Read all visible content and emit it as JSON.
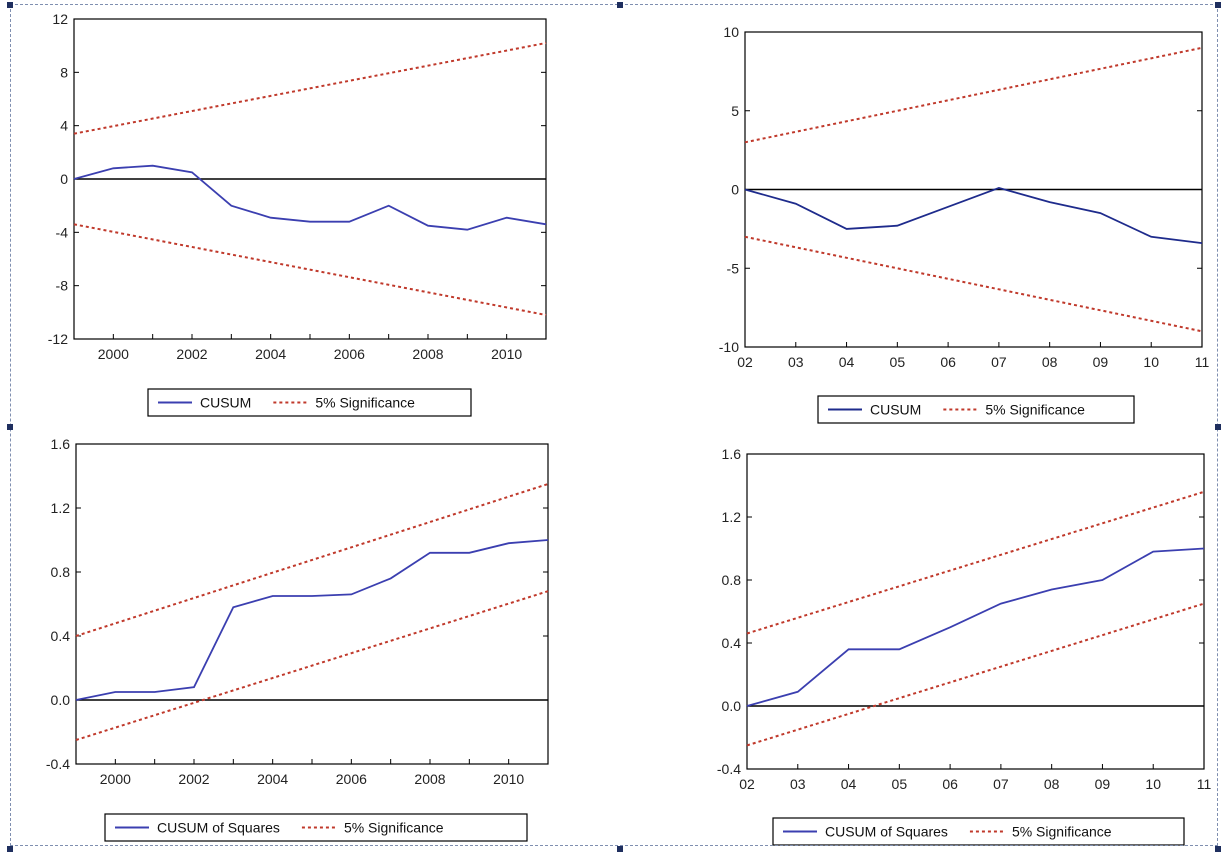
{
  "colors": {
    "cusum": "#3b3fb0",
    "cusum_dark": "#1e2b8c",
    "significance": "#c0392b",
    "axis": "#000000"
  },
  "chart_data": [
    {
      "type": "line",
      "xlim": [
        1999,
        2011
      ],
      "ylim": [
        -12,
        12
      ],
      "yticks": [
        12,
        8,
        4,
        0,
        -4,
        -8,
        -12
      ],
      "ytick_labels": [
        "12",
        "8",
        "4",
        "0",
        "-4",
        "-8",
        "-12"
      ],
      "xticks": [
        2000,
        2002,
        2004,
        2006,
        2008,
        2010
      ],
      "xtick_labels": [
        "2000",
        "2002",
        "2004",
        "2006",
        "2008",
        "2010"
      ],
      "series": [
        {
          "name": "CUSUM",
          "style": "solid",
          "x": [
            1999,
            2000,
            2001,
            2002,
            2003,
            2004,
            2005,
            2006,
            2007,
            2008,
            2009,
            2010,
            2011
          ],
          "y": [
            0,
            0.8,
            1.0,
            0.5,
            -2.0,
            -2.9,
            -3.2,
            -3.2,
            -2.0,
            -3.5,
            -3.8,
            -2.9,
            -3.4
          ]
        },
        {
          "name": "5% Significance",
          "style": "dotted",
          "x": [
            1999,
            2011
          ],
          "y": [
            3.4,
            10.2
          ]
        },
        {
          "name": "5% Significance",
          "style": "dotted",
          "x": [
            1999,
            2011
          ],
          "y": [
            -3.4,
            -10.2
          ]
        }
      ],
      "legend": [
        {
          "label": "CUSUM",
          "style": "solid"
        },
        {
          "label": "5% Significance",
          "style": "dotted"
        }
      ],
      "legend_position": "bottom"
    },
    {
      "type": "line",
      "xlim": [
        2,
        11
      ],
      "ylim": [
        -10,
        10
      ],
      "yticks": [
        10,
        5,
        0,
        -5,
        -10
      ],
      "ytick_labels": [
        "10",
        "5",
        "0",
        "-5",
        "-10"
      ],
      "xticks": [
        2,
        3,
        4,
        5,
        6,
        7,
        8,
        9,
        10,
        11
      ],
      "xtick_labels": [
        "02",
        "03",
        "04",
        "05",
        "06",
        "07",
        "08",
        "09",
        "10",
        "11"
      ],
      "series": [
        {
          "name": "CUSUM",
          "style": "solid",
          "x": [
            2,
            3,
            4,
            5,
            6,
            7,
            8,
            9,
            10,
            11
          ],
          "y": [
            0,
            -0.9,
            -2.5,
            -2.3,
            -1.1,
            0.1,
            -0.8,
            -1.5,
            -3.0,
            -3.4
          ]
        },
        {
          "name": "5% Significance",
          "style": "dotted",
          "x": [
            2,
            11
          ],
          "y": [
            3.0,
            9.0
          ]
        },
        {
          "name": "5% Significance",
          "style": "dotted",
          "x": [
            2,
            11
          ],
          "y": [
            -3.0,
            -9.0
          ]
        }
      ],
      "legend": [
        {
          "label": "CUSUM",
          "style": "solid"
        },
        {
          "label": "5% Significance",
          "style": "dotted"
        }
      ],
      "legend_position": "bottom"
    },
    {
      "type": "line",
      "xlim": [
        1999,
        2011
      ],
      "ylim": [
        -0.4,
        1.6
      ],
      "yticks": [
        1.6,
        1.2,
        0.8,
        0.4,
        0.0,
        -0.4
      ],
      "ytick_labels": [
        "1.6",
        "1.2",
        "0.8",
        "0.4",
        "0.0",
        "-0.4"
      ],
      "xticks": [
        2000,
        2002,
        2004,
        2006,
        2008,
        2010
      ],
      "xtick_labels": [
        "2000",
        "2002",
        "2004",
        "2006",
        "2008",
        "2010"
      ],
      "series": [
        {
          "name": "CUSUM of Squares",
          "style": "solid",
          "x": [
            1999,
            2000,
            2001,
            2002,
            2003,
            2004,
            2005,
            2006,
            2007,
            2008,
            2009,
            2010,
            2011
          ],
          "y": [
            0,
            0.05,
            0.05,
            0.08,
            0.58,
            0.65,
            0.65,
            0.66,
            0.76,
            0.92,
            0.92,
            0.98,
            1.0
          ]
        },
        {
          "name": "5% Significance",
          "style": "dotted",
          "x": [
            1999,
            2011
          ],
          "y": [
            0.4,
            1.35
          ]
        },
        {
          "name": "5% Significance",
          "style": "dotted",
          "x": [
            1999,
            2011
          ],
          "y": [
            -0.25,
            0.68
          ]
        }
      ],
      "legend": [
        {
          "label": "CUSUM of Squares",
          "style": "solid"
        },
        {
          "label": "5% Significance",
          "style": "dotted"
        }
      ],
      "legend_position": "bottom"
    },
    {
      "type": "line",
      "xlim": [
        2,
        11
      ],
      "ylim": [
        -0.4,
        1.6
      ],
      "yticks": [
        1.6,
        1.2,
        0.8,
        0.4,
        0.0,
        -0.4
      ],
      "ytick_labels": [
        "1.6",
        "1.2",
        "0.8",
        "0.4",
        "0.0",
        "-0.4"
      ],
      "xticks": [
        2,
        3,
        4,
        5,
        6,
        7,
        8,
        9,
        10,
        11
      ],
      "xtick_labels": [
        "02",
        "03",
        "04",
        "05",
        "06",
        "07",
        "08",
        "09",
        "10",
        "11"
      ],
      "series": [
        {
          "name": "CUSUM of Squares",
          "style": "solid",
          "x": [
            2,
            3,
            4,
            5,
            6,
            7,
            8,
            9,
            10,
            11
          ],
          "y": [
            0,
            0.09,
            0.36,
            0.36,
            0.5,
            0.65,
            0.74,
            0.8,
            0.98,
            1.0
          ]
        },
        {
          "name": "5% Significance",
          "style": "dotted",
          "x": [
            2,
            11
          ],
          "y": [
            0.46,
            1.36
          ]
        },
        {
          "name": "5% Significance",
          "style": "dotted",
          "x": [
            2,
            11
          ],
          "y": [
            -0.25,
            0.65
          ]
        }
      ],
      "legend": [
        {
          "label": "CUSUM of Squares",
          "style": "solid"
        },
        {
          "label": "5% Significance",
          "style": "dotted"
        }
      ],
      "legend_position": "bottom"
    }
  ]
}
